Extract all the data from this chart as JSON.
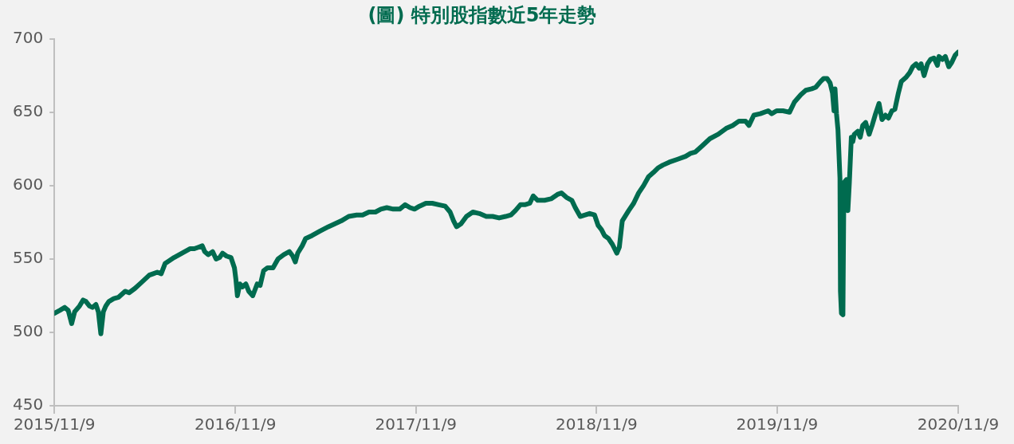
{
  "chart_data": {
    "type": "line",
    "title": "(圖) 特別股指數近5年走勢",
    "x": [
      "2015-11-09",
      "2015-11-20",
      "2015-11-30",
      "2015-12-07",
      "2015-12-14",
      "2015-12-20",
      "2015-12-30",
      "2016-01-06",
      "2016-01-12",
      "2016-01-19",
      "2016-01-25",
      "2016-02-01",
      "2016-02-06",
      "2016-02-11",
      "2016-02-16",
      "2016-02-21",
      "2016-02-27",
      "2016-03-08",
      "2016-03-18",
      "2016-03-31",
      "2016-04-08",
      "2016-04-20",
      "2016-05-03",
      "2016-05-19",
      "2016-05-27",
      "2016-06-04",
      "2016-06-12",
      "2016-06-20",
      "2016-07-08",
      "2016-07-24",
      "2016-08-09",
      "2016-08-18",
      "2016-08-26",
      "2016-09-03",
      "2016-09-08",
      "2016-09-15",
      "2016-09-24",
      "2016-10-01",
      "2016-10-08",
      "2016-10-14",
      "2016-10-22",
      "2016-10-31",
      "2016-11-07",
      "2016-11-10",
      "2016-11-13",
      "2016-11-18",
      "2016-11-23",
      "2016-11-30",
      "2016-12-06",
      "2016-12-14",
      "2016-12-23",
      "2016-12-29",
      "2017-01-05",
      "2017-01-13",
      "2017-01-24",
      "2017-02-03",
      "2017-02-15",
      "2017-02-26",
      "2017-03-05",
      "2017-03-10",
      "2017-03-15",
      "2017-03-24",
      "2017-03-31",
      "2017-04-13",
      "2017-04-29",
      "2017-05-16",
      "2017-05-29",
      "2017-06-11",
      "2017-06-26",
      "2017-07-12",
      "2017-07-24",
      "2017-08-06",
      "2017-08-19",
      "2017-08-30",
      "2017-09-11",
      "2017-09-24",
      "2017-10-07",
      "2017-10-18",
      "2017-10-28",
      "2017-11-06",
      "2017-11-16",
      "2017-11-29",
      "2017-12-12",
      "2017-12-25",
      "2018-01-07",
      "2018-01-17",
      "2018-01-24",
      "2018-01-30",
      "2018-02-08",
      "2018-02-19",
      "2018-03-04",
      "2018-03-17",
      "2018-03-31",
      "2018-04-13",
      "2018-04-26",
      "2018-05-09",
      "2018-05-20",
      "2018-05-29",
      "2018-06-08",
      "2018-06-17",
      "2018-06-27",
      "2018-07-04",
      "2018-07-13",
      "2018-07-27",
      "2018-08-09",
      "2018-08-22",
      "2018-08-30",
      "2018-09-09",
      "2018-09-20",
      "2018-09-27",
      "2018-10-07",
      "2018-10-17",
      "2018-10-26",
      "2018-11-05",
      "2018-11-12",
      "2018-11-19",
      "2018-11-25",
      "2018-12-03",
      "2018-12-11",
      "2018-12-20",
      "2018-12-25",
      "2018-12-31",
      "2019-01-13",
      "2019-01-23",
      "2019-02-02",
      "2019-02-12",
      "2019-02-22",
      "2019-03-04",
      "2019-03-13",
      "2019-03-23",
      "2019-04-05",
      "2019-04-22",
      "2019-05-08",
      "2019-05-18",
      "2019-05-28",
      "2019-06-10",
      "2019-06-26",
      "2019-07-13",
      "2019-07-29",
      "2019-08-11",
      "2019-08-24",
      "2019-09-06",
      "2019-09-13",
      "2019-09-23",
      "2019-10-06",
      "2019-10-22",
      "2019-10-29",
      "2019-11-08",
      "2019-11-21",
      "2019-12-04",
      "2019-12-14",
      "2019-12-27",
      "2020-01-06",
      "2020-01-18",
      "2020-01-26",
      "2020-02-05",
      "2020-02-11",
      "2020-02-18",
      "2020-02-24",
      "2020-02-29",
      "2020-03-03",
      "2020-03-05",
      "2020-03-08",
      "2020-03-11",
      "2020-03-15",
      "2020-03-16",
      "2020-03-18",
      "2020-03-21",
      "2020-03-23",
      "2020-03-28",
      "2020-03-31",
      "2020-04-03",
      "2020-04-07",
      "2020-04-10",
      "2020-04-13",
      "2020-04-20",
      "2020-04-25",
      "2020-04-30",
      "2020-05-06",
      "2020-05-13",
      "2020-05-19",
      "2020-05-26",
      "2020-06-02",
      "2020-06-08",
      "2020-06-15",
      "2020-06-21",
      "2020-06-28",
      "2020-07-04",
      "2020-07-11",
      "2020-07-17",
      "2020-07-27",
      "2020-08-03",
      "2020-08-09",
      "2020-08-16",
      "2020-08-22",
      "2020-08-26",
      "2020-09-01",
      "2020-09-08",
      "2020-09-14",
      "2020-09-21",
      "2020-09-28",
      "2020-10-01",
      "2020-10-08",
      "2020-10-14",
      "2020-10-21",
      "2020-10-27",
      "2020-11-03",
      "2020-11-09"
    ],
    "series": [
      {
        "color": "#006b4f",
        "values": [
          513,
          515,
          517,
          515,
          506,
          514,
          518,
          522,
          521,
          518,
          517,
          519,
          514,
          499,
          514,
          518,
          521,
          523,
          524,
          528,
          527,
          530,
          534,
          539,
          540,
          541,
          540,
          547,
          551,
          554,
          557,
          557,
          558,
          559,
          555,
          553,
          555,
          550,
          551,
          554,
          552,
          551,
          544,
          536,
          525,
          533,
          531,
          533,
          528,
          525,
          533,
          532,
          542,
          544,
          544,
          550,
          553,
          555,
          552,
          548,
          554,
          559,
          564,
          566,
          569,
          572,
          574,
          576,
          579,
          580,
          580,
          582,
          582,
          584,
          585,
          584,
          584,
          587,
          585,
          584,
          586,
          588,
          588,
          587,
          586,
          582,
          576,
          572,
          574,
          579,
          582,
          581,
          579,
          579,
          578,
          579,
          580,
          583,
          587,
          587,
          588,
          593,
          590,
          590,
          591,
          594,
          595,
          592,
          590,
          585,
          579,
          580,
          581,
          580,
          573,
          570,
          566,
          564,
          560,
          554,
          558,
          576,
          583,
          588,
          595,
          600,
          606,
          609,
          612,
          614,
          616,
          618,
          620,
          622,
          623,
          627,
          632,
          635,
          639,
          641,
          644,
          644,
          641,
          648,
          649,
          651,
          649,
          651,
          651,
          650,
          657,
          662,
          665,
          666,
          667,
          671,
          673,
          673,
          670,
          663,
          651,
          666,
          649,
          638,
          605,
          528,
          513,
          512,
          602,
          604,
          583,
          602,
          633,
          630,
          635,
          637,
          633,
          641,
          643,
          635,
          641,
          649,
          656,
          645,
          648,
          646,
          651,
          652,
          663,
          671,
          674,
          677,
          681,
          683,
          680,
          683,
          675,
          683,
          686,
          687,
          682,
          688,
          686,
          688,
          681,
          684,
          689,
          691
        ]
      }
    ],
    "xlim": [
      "2015-11-09",
      "2020-11-09"
    ],
    "xticks": [
      {
        "value": "2015-11-09",
        "label": "2015/11/9"
      },
      {
        "value": "2016-11-09",
        "label": "2016/11/9"
      },
      {
        "value": "2017-11-09",
        "label": "2017/11/9"
      },
      {
        "value": "2018-11-09",
        "label": "2018/11/9"
      },
      {
        "value": "2019-11-09",
        "label": "2019/11/9"
      },
      {
        "value": "2020-11-09",
        "label": "2020/11/9"
      }
    ],
    "ylim": [
      450,
      700
    ],
    "yticks": [
      450,
      500,
      550,
      600,
      650,
      700
    ],
    "legend": false,
    "marker": "none",
    "line_style": "solid"
  }
}
